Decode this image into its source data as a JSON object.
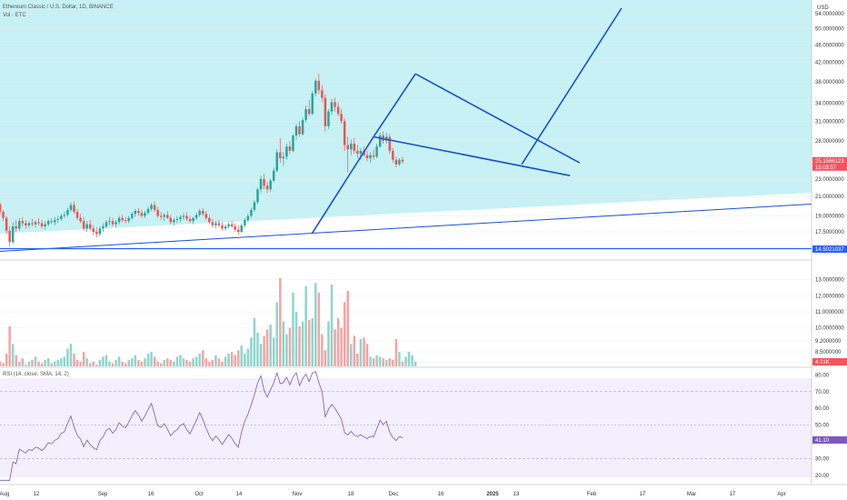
{
  "header": {
    "symbol": "Ethereum Classic / U.S. Dollar, 1D, BINANCE",
    "volume_label": "Vol · ETC",
    "currency": "USD"
  },
  "price_panel": {
    "background": "#c7f1f4",
    "current_price": "25.1566123",
    "countdown": "15:03:57",
    "level_line": "14.5021037",
    "level_color": "#2962ff",
    "price_tag_color": "#f7525f",
    "ticks": [
      "54.0000000",
      "50.0000000",
      "46.0000000",
      "42.0000000",
      "38.0000000",
      "34.0000000",
      "31.0000000",
      "28.0000000",
      "23.0000000",
      "21.0000000",
      "19.0000000",
      "17.5000000",
      "16.0000000"
    ]
  },
  "volume_panel": {
    "last_value": "4.21K",
    "tag_color": "#f7525f",
    "ticks": [
      "13.0000000",
      "12.0000000",
      "11.0000000",
      "10.0000000",
      "9.2000000",
      "8.5000000",
      "7.8500000"
    ]
  },
  "rsi_panel": {
    "label": "RSI (14, close, SMA, 14, 2)",
    "background": "#f3effc",
    "line_color": "#7e57c2",
    "value": "41.10",
    "ticks": [
      "80.00",
      "70.00",
      "60.00",
      "50.00",
      "40.00",
      "30.00",
      "20.00"
    ]
  },
  "x_axis": {
    "labels": [
      "Aug",
      "12",
      "Sep",
      "16",
      "Oct",
      "14",
      "Nov",
      "18",
      "Dec",
      "16",
      "2025",
      "13",
      "Feb",
      "17",
      "Mar",
      "17",
      "Apr"
    ]
  },
  "chart_data": {
    "type": "candlestick",
    "title": "Ethereum Classic / U.S. Dollar, 1D, BINANCE",
    "x_range": [
      "2024-08-01",
      "2025-04-10"
    ],
    "y_scale": "log",
    "y_range": [
      15.2,
      58
    ],
    "candles_ohlc": [
      [
        20.3,
        20.6,
        19.8,
        20.2
      ],
      [
        20.2,
        20.3,
        19.1,
        19.4
      ],
      [
        19.4,
        19.6,
        18.5,
        18.8
      ],
      [
        18.8,
        19.0,
        17.3,
        17.6
      ],
      [
        17.6,
        18.0,
        16.2,
        16.6
      ],
      [
        16.6,
        18.4,
        16.4,
        18.0
      ],
      [
        18.0,
        18.6,
        17.5,
        17.8
      ],
      [
        17.8,
        18.8,
        17.6,
        18.5
      ],
      [
        18.5,
        18.9,
        18.0,
        18.3
      ],
      [
        18.3,
        18.6,
        17.8,
        18.1
      ],
      [
        18.1,
        18.5,
        17.9,
        18.3
      ],
      [
        18.3,
        18.7,
        18.0,
        18.2
      ],
      [
        18.2,
        18.6,
        17.9,
        18.4
      ],
      [
        18.4,
        18.8,
        18.1,
        18.3
      ],
      [
        18.3,
        18.6,
        17.8,
        18.0
      ],
      [
        18.0,
        18.5,
        17.7,
        18.2
      ],
      [
        18.2,
        18.7,
        18.0,
        18.5
      ],
      [
        18.5,
        18.8,
        18.2,
        18.4
      ],
      [
        18.4,
        18.9,
        18.1,
        18.6
      ],
      [
        18.6,
        19.0,
        18.3,
        18.7
      ],
      [
        18.7,
        19.2,
        18.5,
        19.0
      ],
      [
        19.0,
        19.4,
        18.8,
        19.1
      ],
      [
        19.1,
        19.8,
        18.9,
        19.6
      ],
      [
        19.6,
        20.4,
        19.4,
        20.1
      ],
      [
        20.1,
        20.5,
        19.2,
        19.4
      ],
      [
        19.4,
        19.7,
        18.6,
        18.8
      ],
      [
        18.8,
        19.2,
        18.3,
        18.5
      ],
      [
        18.5,
        18.9,
        17.6,
        17.8
      ],
      [
        17.8,
        18.5,
        17.5,
        18.2
      ],
      [
        18.2,
        18.6,
        17.6,
        17.8
      ],
      [
        17.8,
        18.1,
        17.2,
        17.5
      ],
      [
        17.5,
        17.9,
        17.0,
        17.3
      ],
      [
        17.3,
        18.0,
        17.1,
        17.8
      ],
      [
        17.8,
        18.3,
        17.5,
        18.0
      ],
      [
        18.0,
        18.6,
        17.8,
        18.4
      ],
      [
        18.4,
        18.9,
        18.1,
        18.5
      ],
      [
        18.5,
        18.8,
        18.0,
        18.2
      ],
      [
        18.2,
        18.6,
        17.9,
        18.4
      ],
      [
        18.4,
        19.0,
        18.2,
        18.8
      ],
      [
        18.8,
        19.1,
        18.4,
        18.6
      ],
      [
        18.6,
        18.9,
        18.3,
        18.5
      ],
      [
        18.5,
        19.0,
        18.3,
        18.8
      ],
      [
        18.8,
        19.4,
        18.6,
        19.2
      ],
      [
        19.2,
        19.7,
        18.9,
        19.5
      ],
      [
        19.5,
        19.8,
        19.0,
        19.3
      ],
      [
        19.3,
        19.6,
        18.8,
        19.0
      ],
      [
        19.0,
        19.5,
        18.8,
        19.3
      ],
      [
        19.3,
        19.9,
        19.1,
        19.7
      ],
      [
        19.7,
        20.3,
        19.5,
        20.1
      ],
      [
        20.1,
        20.5,
        19.4,
        19.6
      ],
      [
        19.6,
        19.9,
        18.8,
        19.0
      ],
      [
        19.0,
        19.4,
        18.6,
        18.9
      ],
      [
        18.9,
        19.3,
        18.5,
        19.1
      ],
      [
        19.1,
        19.5,
        18.7,
        18.8
      ],
      [
        18.8,
        19.1,
        18.2,
        18.4
      ],
      [
        18.4,
        18.8,
        18.1,
        18.6
      ],
      [
        18.6,
        19.0,
        18.3,
        18.7
      ],
      [
        18.7,
        19.1,
        18.4,
        18.9
      ],
      [
        18.9,
        19.3,
        18.6,
        19.0
      ],
      [
        19.0,
        19.4,
        18.5,
        18.7
      ],
      [
        18.7,
        19.0,
        18.3,
        18.5
      ],
      [
        18.5,
        18.9,
        18.2,
        18.8
      ],
      [
        18.8,
        19.3,
        18.6,
        19.1
      ],
      [
        19.1,
        19.7,
        18.9,
        19.5
      ],
      [
        19.5,
        19.8,
        19.0,
        19.2
      ],
      [
        19.2,
        19.5,
        18.6,
        18.8
      ],
      [
        18.8,
        19.1,
        18.2,
        18.4
      ],
      [
        18.4,
        18.7,
        17.9,
        18.1
      ],
      [
        18.1,
        18.5,
        17.8,
        18.3
      ],
      [
        18.3,
        18.6,
        17.9,
        18.1
      ],
      [
        18.1,
        18.4,
        17.6,
        17.8
      ],
      [
        17.8,
        18.2,
        17.6,
        18.0
      ],
      [
        18.0,
        18.4,
        17.8,
        18.2
      ],
      [
        18.2,
        18.5,
        17.9,
        18.0
      ],
      [
        18.0,
        18.3,
        17.5,
        17.7
      ],
      [
        17.7,
        18.1,
        17.2,
        17.5
      ],
      [
        17.5,
        18.3,
        17.4,
        18.1
      ],
      [
        18.1,
        18.8,
        17.9,
        18.6
      ],
      [
        18.6,
        19.2,
        18.4,
        19.0
      ],
      [
        19.0,
        19.8,
        18.8,
        19.6
      ],
      [
        19.6,
        20.6,
        19.4,
        20.4
      ],
      [
        20.4,
        22.0,
        20.2,
        21.8
      ],
      [
        21.8,
        23.4,
        21.4,
        23.0
      ],
      [
        23.0,
        23.6,
        21.8,
        22.2
      ],
      [
        22.2,
        22.6,
        21.4,
        21.8
      ],
      [
        21.8,
        23.0,
        21.5,
        22.8
      ],
      [
        22.8,
        24.4,
        22.6,
        24.0
      ],
      [
        24.0,
        26.8,
        23.8,
        26.4
      ],
      [
        26.4,
        28.4,
        25.0,
        25.6
      ],
      [
        25.6,
        26.4,
        24.6,
        25.8
      ],
      [
        25.8,
        27.6,
        25.4,
        27.2
      ],
      [
        27.2,
        28.0,
        26.2,
        26.6
      ],
      [
        26.6,
        29.0,
        26.4,
        28.8
      ],
      [
        28.8,
        30.6,
        28.2,
        30.2
      ],
      [
        30.2,
        31.0,
        28.6,
        29.0
      ],
      [
        29.0,
        31.6,
        28.8,
        31.2
      ],
      [
        31.2,
        33.6,
        30.8,
        33.0
      ],
      [
        33.0,
        34.6,
        31.8,
        32.2
      ],
      [
        32.2,
        36.2,
        32.0,
        35.8
      ],
      [
        35.8,
        38.6,
        35.2,
        38.2
      ],
      [
        38.2,
        39.6,
        35.6,
        36.4
      ],
      [
        36.4,
        37.4,
        34.2,
        35.0
      ],
      [
        35.0,
        35.6,
        29.4,
        30.2
      ],
      [
        30.2,
        33.0,
        29.8,
        32.6
      ],
      [
        32.6,
        34.8,
        32.0,
        34.2
      ],
      [
        34.2,
        35.0,
        32.6,
        33.4
      ],
      [
        33.4,
        34.2,
        31.8,
        32.2
      ],
      [
        32.2,
        33.0,
        30.6,
        31.0
      ],
      [
        31.0,
        31.4,
        26.6,
        27.4
      ],
      [
        27.4,
        28.6,
        23.8,
        26.8
      ],
      [
        26.8,
        28.2,
        26.0,
        27.6
      ],
      [
        27.6,
        28.4,
        26.2,
        26.6
      ],
      [
        26.6,
        27.4,
        25.6,
        26.2
      ],
      [
        26.2,
        27.0,
        25.4,
        26.6
      ],
      [
        26.6,
        27.2,
        25.8,
        26.0
      ],
      [
        26.0,
        26.6,
        25.2,
        25.6
      ],
      [
        25.6,
        26.4,
        25.0,
        26.0
      ],
      [
        26.0,
        26.8,
        25.4,
        25.8
      ],
      [
        25.8,
        27.6,
        25.6,
        27.2
      ],
      [
        27.2,
        29.2,
        27.0,
        28.8
      ],
      [
        28.8,
        29.4,
        27.6,
        28.0
      ],
      [
        28.0,
        29.2,
        27.6,
        28.6
      ],
      [
        28.6,
        29.0,
        26.2,
        26.6
      ],
      [
        26.6,
        27.0,
        25.0,
        25.4
      ],
      [
        25.4,
        25.8,
        24.4,
        24.8
      ],
      [
        24.8,
        25.6,
        24.6,
        25.4
      ],
      [
        25.4,
        25.8,
        24.9,
        25.16
      ]
    ],
    "volume": [
      8.2,
      7.9,
      7.8,
      8.4,
      10.1,
      9.0,
      8.3,
      7.9,
      8.1,
      7.7,
      7.9,
      8.0,
      8.2,
      7.9,
      7.8,
      8.0,
      8.1,
      7.8,
      7.9,
      8.0,
      8.1,
      8.2,
      8.7,
      9.0,
      8.4,
      8.0,
      7.9,
      8.5,
      8.1,
      7.8,
      7.9,
      7.7,
      8.0,
      8.2,
      8.3,
      7.9,
      7.8,
      8.0,
      8.2,
      7.9,
      7.8,
      8.0,
      8.1,
      8.3,
      8.0,
      7.9,
      8.1,
      8.4,
      8.5,
      8.2,
      7.9,
      7.8,
      8.0,
      8.1,
      8.0,
      7.9,
      8.2,
      8.3,
      8.1,
      8.0,
      7.9,
      8.1,
      8.2,
      8.4,
      8.6,
      8.1,
      7.9,
      8.0,
      8.3,
      8.1,
      7.9,
      8.2,
      8.4,
      8.5,
      8.3,
      8.6,
      8.9,
      8.4,
      8.7,
      9.4,
      10.6,
      9.7,
      9.0,
      9.5,
      9.9,
      10.2,
      9.4,
      11.6,
      13.1,
      10.4,
      9.6,
      10.0,
      12.2,
      11.0,
      10.1,
      10.4,
      12.6,
      10.5,
      10.6,
      12.8,
      12.2,
      9.6,
      8.6,
      10.4,
      12.7,
      9.9,
      10.6,
      10.0,
      11.6,
      12.3,
      9.0,
      9.5,
      8.4,
      9.3,
      9.4,
      9.0,
      8.2,
      8.1,
      8.3,
      8.2,
      8.1,
      8.0,
      8.1,
      8.0,
      9.3,
      8.5,
      7.9,
      8.2,
      8.5,
      8.3,
      7.9
    ],
    "volume_colors": "teal-up red-down",
    "rsi_range": [
      15,
      84
    ],
    "rsi_levels": [
      70,
      50,
      30
    ],
    "rsi_ma_note": "",
    "trendlines": [
      {
        "from": [
          "2024-07-31",
          15.8
        ],
        "to": [
          "2025-04-10",
          20.2
        ],
        "kind": "support"
      },
      {
        "from": [
          "2024-11-06",
          17.4
        ],
        "to": [
          "2024-11-25",
          28.6
        ],
        "kind": "impulse"
      },
      {
        "from": [
          "2024-11-25",
          28.6
        ],
        "to": [
          "2024-12-08",
          39.6
        ],
        "kind": "impulse"
      },
      {
        "from": [
          "2024-12-08",
          39.6
        ],
        "to": [
          "2025-01-28",
          25.0
        ],
        "kind": "wedge-upper"
      },
      {
        "from": [
          "2024-11-25",
          28.6
        ],
        "to": [
          "2025-01-25",
          23.4
        ],
        "kind": "wedge-lower"
      },
      {
        "from": [
          "2025-01-10",
          24.8
        ],
        "to": [
          "2025-02-10",
          55.6
        ],
        "kind": "projection"
      }
    ],
    "horizontal_level": 14.5021037,
    "legend": "none",
    "grid": true
  }
}
